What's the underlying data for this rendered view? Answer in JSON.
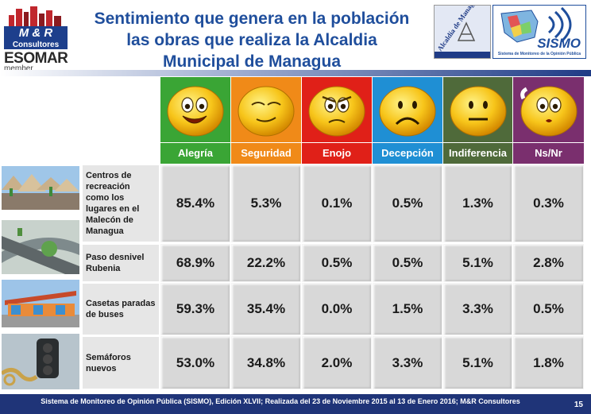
{
  "title": {
    "line1": "Sentimiento que genera en la población",
    "line2": "las obras que realiza la Alcaldia",
    "line3": "Municipal de Managua"
  },
  "logos": {
    "mr_name": "M & R",
    "mr_sub": "Consultores",
    "esomar": "ESOMAR",
    "member": "member",
    "alcaldia": "Alcaldía de Managua",
    "sismo": "SISMO",
    "sismo_caption": "Sistema de Monitoreo de la Opinión Pública"
  },
  "columns": [
    {
      "label": "Alegría",
      "color": "#3aa535",
      "face": "happy"
    },
    {
      "label": "Seguridad",
      "color": "#f08a18",
      "face": "cool"
    },
    {
      "label": "Enojo",
      "color": "#e02018",
      "face": "angry"
    },
    {
      "label": "Decepción",
      "color": "#1f8fd4",
      "face": "sad"
    },
    {
      "label": "Indiferencia",
      "color": "#4f6a3a",
      "face": "neutral"
    },
    {
      "label": "Ns/Nr",
      "color": "#7a2f6e",
      "face": "confused"
    }
  ],
  "rows": [
    {
      "label": "Centros de recreación como los lugares en el Malecón de Managua",
      "values": [
        "85.4%",
        "5.3%",
        "0.1%",
        "0.5%",
        "1.3%",
        "0.3%"
      ]
    },
    {
      "label": "Paso desnivel Rubenia",
      "values": [
        "68.9%",
        "22.2%",
        "0.5%",
        "0.5%",
        "5.1%",
        "2.8%"
      ]
    },
    {
      "label": "Casetas paradas de buses",
      "values": [
        "59.3%",
        "35.4%",
        "0.0%",
        "1.5%",
        "3.3%",
        "0.5%"
      ]
    },
    {
      "label": "Semáforos nuevos",
      "values": [
        "53.0%",
        "34.8%",
        "2.0%",
        "3.3%",
        "5.1%",
        "1.8%"
      ]
    }
  ],
  "footer": {
    "text": "Sistema de Monitoreo de Opinión Pública (SISMO), Edición XLVII; Realizada del  23 de Noviembre 2015 al 13 de Enero 2016; M&R Consultores",
    "page": "15"
  }
}
